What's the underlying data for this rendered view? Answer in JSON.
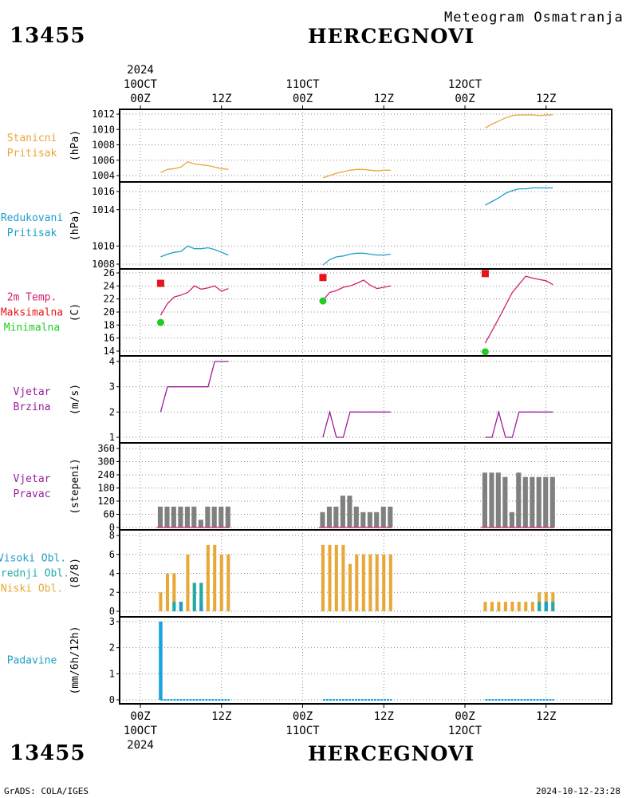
{
  "header": {
    "station_id": "13455",
    "station_name": "HERCEGNOVI",
    "product": "Meteogram Osmatranja"
  },
  "footer": {
    "station_id": "13455",
    "station_name": "HERCEGNOVI",
    "credit": "GrADS: COLA/IGES",
    "timestamp": "2024-10-12-23:28"
  },
  "time_axis": {
    "hours_per_unit": 12,
    "ticks": [
      {
        "t": 0,
        "hour": "00Z",
        "date": "10OCT",
        "year": "2024"
      },
      {
        "t": 0.5,
        "hour": "12Z"
      },
      {
        "t": 1,
        "hour": "00Z",
        "date": "11OCT"
      },
      {
        "t": 1.5,
        "hour": "12Z"
      },
      {
        "t": 2,
        "hour": "00Z",
        "date": "12OCT"
      },
      {
        "t": 2.5,
        "hour": "12Z"
      }
    ]
  },
  "chart_data": [
    {
      "id": "station-pressure",
      "type": "line",
      "labels": [
        {
          "text": "Stanicni",
          "color": "#e8a838"
        },
        {
          "text": "Pritisak",
          "color": "#e8a838"
        }
      ],
      "unit": "(hPa)",
      "ylim": [
        1003.3,
        1012.5
      ],
      "yticks": [
        1004,
        1006,
        1008,
        1010,
        1012
      ],
      "color": "#e8a838",
      "segments": [
        {
          "x": [
            0.125,
            0.167,
            0.208,
            0.25,
            0.292,
            0.333,
            0.375,
            0.417,
            0.458,
            0.5,
            0.542
          ],
          "y": [
            1004.4,
            1004.8,
            1004.9,
            1005.1,
            1005.8,
            1005.5,
            1005.4,
            1005.3,
            1005.1,
            1004.9,
            1004.8
          ]
        },
        {
          "x": [
            1.125,
            1.167,
            1.208,
            1.25,
            1.292,
            1.333,
            1.375,
            1.417,
            1.458,
            1.5,
            1.542
          ],
          "y": [
            1003.7,
            1004.0,
            1004.3,
            1004.5,
            1004.7,
            1004.8,
            1004.8,
            1004.7,
            1004.6,
            1004.7,
            1004.7
          ]
        },
        {
          "x": [
            2.125,
            2.167,
            2.208,
            2.25,
            2.292,
            2.333,
            2.375,
            2.417,
            2.458,
            2.5,
            2.542
          ],
          "y": [
            1010.2,
            1010.7,
            1011.1,
            1011.5,
            1011.8,
            1011.9,
            1011.9,
            1011.9,
            1011.8,
            1011.9,
            1011.9
          ]
        }
      ]
    },
    {
      "id": "reduced-pressure",
      "type": "line",
      "labels": [
        {
          "text": "Redukovani",
          "color": "#1e9fc6"
        },
        {
          "text": "Pritisak",
          "color": "#1e9fc6"
        }
      ],
      "unit": "(hPa)",
      "ylim": [
        1007.4,
        1017.2
      ],
      "yticks": [
        1008,
        1010,
        1014,
        1016
      ],
      "color": "#1e9fc6",
      "segments": [
        {
          "x": [
            0.125,
            0.167,
            0.208,
            0.25,
            0.292,
            0.333,
            0.375,
            0.417,
            0.458,
            0.5,
            0.542
          ],
          "y": [
            1008.8,
            1009.1,
            1009.3,
            1009.4,
            1010.0,
            1009.7,
            1009.7,
            1009.8,
            1009.6,
            1009.3,
            1009.0
          ]
        },
        {
          "x": [
            1.125,
            1.167,
            1.208,
            1.25,
            1.292,
            1.333,
            1.375,
            1.417,
            1.458,
            1.5,
            1.542
          ],
          "y": [
            1007.9,
            1008.5,
            1008.8,
            1008.9,
            1009.1,
            1009.2,
            1009.2,
            1009.1,
            1009.0,
            1009.0,
            1009.1
          ]
        },
        {
          "x": [
            2.125,
            2.167,
            2.208,
            2.25,
            2.292,
            2.333,
            2.375,
            2.417,
            2.458,
            2.5,
            2.542
          ],
          "y": [
            1014.5,
            1014.9,
            1015.3,
            1015.8,
            1016.1,
            1016.3,
            1016.3,
            1016.4,
            1016.4,
            1016.4,
            1016.4
          ]
        }
      ]
    },
    {
      "id": "temperature",
      "type": "line",
      "labels": [
        {
          "text": "2m Temp.",
          "color": "#d11f6f"
        },
        {
          "text": "Maksimalna",
          "color": "#e8141b"
        },
        {
          "text": "Minimalna",
          "color": "#22cc22"
        }
      ],
      "unit": "(C)",
      "ylim": [
        13,
        26.5
      ],
      "yticks": [
        14,
        16,
        18,
        20,
        22,
        24,
        26
      ],
      "color": "#d11f6f",
      "segments": [
        {
          "x": [
            0.125,
            0.167,
            0.208,
            0.25,
            0.292,
            0.333,
            0.375,
            0.417,
            0.458,
            0.5,
            0.542
          ],
          "y": [
            19.5,
            21.3,
            22.3,
            22.6,
            23.0,
            24.0,
            23.5,
            23.7,
            24.0,
            23.2,
            23.6
          ]
        },
        {
          "x": [
            1.125,
            1.167,
            1.208,
            1.25,
            1.292,
            1.333,
            1.375,
            1.417,
            1.458,
            1.5,
            1.542
          ],
          "y": [
            21.8,
            23.0,
            23.3,
            23.8,
            24.0,
            24.4,
            24.9,
            24.1,
            23.6,
            23.8,
            24.0
          ]
        },
        {
          "x": [
            2.125,
            2.208,
            2.292,
            2.375,
            2.417,
            2.458,
            2.5,
            2.542
          ],
          "y": [
            15.2,
            19.0,
            23.0,
            25.5,
            25.2,
            25.0,
            24.8,
            24.2
          ]
        }
      ],
      "max": {
        "x": [
          0.125,
          1.125,
          2.125
        ],
        "y": [
          24.4,
          25.3,
          25.9
        ],
        "color": "#e8141b"
      },
      "min": {
        "x": [
          0.125,
          1.125,
          2.125
        ],
        "y": [
          18.4,
          21.7,
          13.9
        ],
        "color": "#22cc22"
      }
    },
    {
      "id": "wind-speed",
      "type": "line",
      "labels": [
        {
          "text": "Vjetar",
          "color": "#9a1e9a"
        },
        {
          "text": "Brzina",
          "color": "#9a1e9a"
        }
      ],
      "unit": "(m/s)",
      "ylim": [
        0.9,
        4.2
      ],
      "yticks": [
        1,
        2,
        3,
        4
      ],
      "color": "#9a1e9a",
      "segments": [
        {
          "x": [
            0.125,
            0.167,
            0.208,
            0.25,
            0.292,
            0.333,
            0.375,
            0.417,
            0.458,
            0.5,
            0.542
          ],
          "y": [
            2,
            3,
            3,
            3,
            3,
            3,
            3,
            3,
            4,
            4,
            4
          ]
        },
        {
          "x": [
            1.125,
            1.167,
            1.208,
            1.25,
            1.292,
            1.333,
            1.375,
            1.417,
            1.458,
            1.5,
            1.542
          ],
          "y": [
            1,
            2,
            1,
            1,
            2,
            2,
            2,
            2,
            2,
            2,
            2
          ]
        },
        {
          "x": [
            2.125,
            2.167,
            2.208,
            2.25,
            2.292,
            2.333,
            2.375,
            2.417,
            2.458,
            2.5,
            2.542
          ],
          "y": [
            1,
            1,
            2,
            1,
            1,
            2,
            2,
            2,
            2,
            2,
            2
          ]
        }
      ]
    },
    {
      "id": "wind-direction",
      "type": "bar",
      "labels": [
        {
          "text": "Vjetar",
          "color": "#9a1e9a"
        },
        {
          "text": "Pravac",
          "color": "#9a1e9a"
        }
      ],
      "unit": "(stepeni)",
      "ylim": [
        -10,
        365
      ],
      "yticks": [
        0,
        60,
        120,
        180,
        240,
        300,
        360
      ],
      "bar_color": "#808080",
      "bar_width_units": 0.035,
      "baseline_color": "#d11f6f",
      "bars": {
        "x": [
          0.125,
          0.167,
          0.208,
          0.25,
          0.292,
          0.333,
          0.375,
          0.417,
          0.458,
          0.5,
          0.542,
          1.125,
          1.167,
          1.208,
          1.25,
          1.292,
          1.333,
          1.375,
          1.417,
          1.458,
          1.5,
          1.542,
          2.125,
          2.167,
          2.208,
          2.25,
          2.292,
          2.333,
          2.375,
          2.417,
          2.458,
          2.5,
          2.542
        ],
        "y": [
          95,
          95,
          95,
          95,
          95,
          95,
          35,
          95,
          95,
          95,
          95,
          70,
          95,
          95,
          145,
          145,
          95,
          70,
          70,
          70,
          95,
          95,
          250,
          250,
          250,
          230,
          70,
          250,
          230,
          230,
          230,
          230,
          230
        ]
      }
    },
    {
      "id": "clouds",
      "type": "bar",
      "labels": [
        {
          "text": "Visoki Obl.",
          "color": "#1e9fc6"
        },
        {
          "text": "Srednji Obl.",
          "color": "#22aaaa"
        },
        {
          "text": "Niski Obl.",
          "color": "#e8a838"
        }
      ],
      "unit": "(8/8)",
      "ylim": [
        -0.3,
        8.3
      ],
      "yticks": [
        0,
        2,
        4,
        6,
        8
      ],
      "series": [
        {
          "name": "Niski Obl.",
          "color": "#e8a838",
          "x": [
            0.125,
            0.167,
            0.208,
            0.25,
            0.292,
            0.333,
            0.375,
            0.417,
            0.458,
            0.5,
            0.542,
            1.125,
            1.167,
            1.208,
            1.25,
            1.292,
            1.333,
            1.375,
            1.417,
            1.458,
            1.5,
            1.542,
            2.125,
            2.167,
            2.208,
            2.25,
            2.292,
            2.333,
            2.375,
            2.417,
            2.458,
            2.5,
            2.542
          ],
          "y": [
            2,
            4,
            4,
            1,
            6,
            3,
            3,
            7,
            7,
            6,
            6,
            7,
            7,
            7,
            7,
            5,
            6,
            6,
            6,
            6,
            6,
            6,
            1,
            1,
            1,
            1,
            1,
            1,
            1,
            1,
            2,
            2,
            2
          ]
        },
        {
          "name": "Srednji Obl.",
          "color": "#22aaaa",
          "x": [
            0.208,
            0.25,
            0.333,
            0.375,
            2.458,
            2.5,
            2.542
          ],
          "y": [
            1,
            1,
            3,
            3,
            1,
            1,
            1
          ]
        },
        {
          "name": "Visoki Obl.",
          "color": "#1e9fc6",
          "x": [
            0.25,
            0.375,
            2.5
          ],
          "y": [
            1,
            1,
            1
          ]
        }
      ],
      "bar_width_units": 0.02
    },
    {
      "id": "precipitation",
      "type": "bar",
      "labels": [
        {
          "text": "Padavine",
          "color": "#1e9fc6"
        }
      ],
      "unit": "(mm/6h/12h)",
      "ylim": [
        -0.15,
        3.2
      ],
      "yticks": [
        0,
        1,
        2,
        3
      ],
      "bar_color": "#1aa3e0",
      "bar_width_units": 0.022,
      "bars": {
        "x": [
          0.125
        ],
        "y": [
          3.0
        ]
      },
      "trace_segments": [
        [
          0.125,
          0.55
        ],
        [
          1.125,
          1.55
        ],
        [
          2.125,
          2.55
        ]
      ]
    }
  ]
}
